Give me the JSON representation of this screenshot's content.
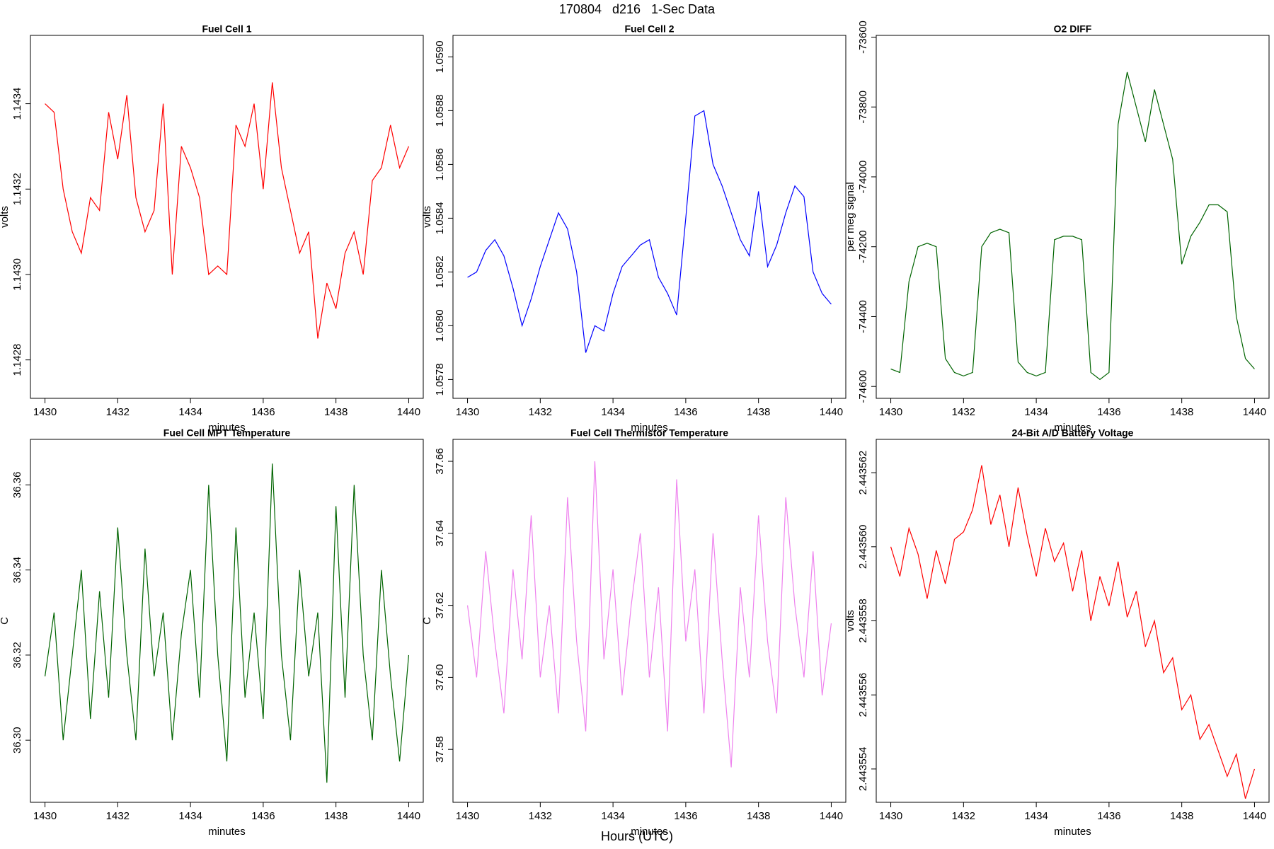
{
  "title": "170804   d216   1-Sec Data",
  "xlabel": "Hours (UTC)",
  "chart_data": [
    {
      "type": "line",
      "title": "Fuel Cell 1",
      "xlabel": "minutes",
      "ylabel": "volts",
      "color": "#ff0000",
      "x": [
        1430,
        1430.25,
        1430.5,
        1430.75,
        1431,
        1431.25,
        1431.5,
        1431.75,
        1432,
        1432.25,
        1432.5,
        1432.75,
        1433,
        1433.25,
        1433.5,
        1433.75,
        1434,
        1434.25,
        1434.5,
        1434.75,
        1435,
        1435.25,
        1435.5,
        1435.75,
        1436,
        1436.25,
        1436.5,
        1436.75,
        1437,
        1437.25,
        1437.5,
        1437.75,
        1438,
        1438.25,
        1438.5,
        1438.75,
        1439,
        1439.25,
        1439.5,
        1439.75,
        1440
      ],
      "values": [
        1.1434,
        1.14338,
        1.1432,
        1.1431,
        1.14305,
        1.14318,
        1.14315,
        1.14338,
        1.14327,
        1.14342,
        1.14318,
        1.1431,
        1.14315,
        1.1434,
        1.143,
        1.1433,
        1.14325,
        1.14318,
        1.143,
        1.14302,
        1.143,
        1.14335,
        1.1433,
        1.1434,
        1.1432,
        1.14345,
        1.14325,
        1.14315,
        1.14305,
        1.1431,
        1.14285,
        1.14298,
        1.14292,
        1.14305,
        1.1431,
        1.143,
        1.14322,
        1.14325,
        1.14335,
        1.14325,
        1.1433
      ],
      "xlim": [
        1429.6,
        1440.4
      ],
      "xticks": [
        1430,
        1432,
        1434,
        1436,
        1438,
        1440
      ],
      "ylim": [
        1.14271,
        1.14356
      ],
      "yticks": [
        1.1428,
        {
          "value": 1.143,
          "label": "1.1430"
        },
        1.1432,
        1.1434
      ]
    },
    {
      "type": "line",
      "title": "Fuel Cell 2",
      "xlabel": "minutes",
      "ylabel": "volts",
      "color": "#0000ff",
      "x": [
        1430,
        1430.25,
        1430.5,
        1430.75,
        1431,
        1431.25,
        1431.5,
        1431.75,
        1432,
        1432.25,
        1432.5,
        1432.75,
        1433,
        1433.25,
        1433.5,
        1433.75,
        1434,
        1434.25,
        1434.5,
        1434.75,
        1435,
        1435.25,
        1435.5,
        1435.75,
        1436,
        1436.25,
        1436.5,
        1436.75,
        1437,
        1437.25,
        1437.5,
        1437.75,
        1438,
        1438.25,
        1438.5,
        1438.75,
        1439,
        1439.25,
        1439.5,
        1439.75,
        1440
      ],
      "values": [
        1.05818,
        1.0582,
        1.05828,
        1.05832,
        1.05826,
        1.05814,
        1.058,
        1.0581,
        1.05822,
        1.05832,
        1.05842,
        1.05836,
        1.0582,
        1.0579,
        1.058,
        1.05798,
        1.05812,
        1.05822,
        1.05826,
        1.0583,
        1.05832,
        1.05818,
        1.05812,
        1.05804,
        1.0584,
        1.05878,
        1.0588,
        1.0586,
        1.05852,
        1.05842,
        1.05832,
        1.05826,
        1.0585,
        1.05822,
        1.0583,
        1.05842,
        1.05852,
        1.05848,
        1.0582,
        1.05812,
        1.05808
      ],
      "xlim": [
        1429.6,
        1440.4
      ],
      "xticks": [
        1430,
        1432,
        1434,
        1436,
        1438,
        1440
      ],
      "ylim": [
        1.05773,
        1.05908
      ],
      "yticks": [
        1.0578,
        {
          "value": 1.058,
          "label": "1.0580"
        },
        1.0582,
        1.0584,
        1.0586,
        1.0588,
        {
          "value": 1.059,
          "label": "1.0590"
        }
      ]
    },
    {
      "type": "line",
      "title": "O2 DIFF",
      "xlabel": "minutes",
      "ylabel": "per meg signal",
      "color": "#006400",
      "x": [
        1430,
        1430.25,
        1430.5,
        1430.75,
        1431,
        1431.25,
        1431.5,
        1431.75,
        1432,
        1432.25,
        1432.5,
        1432.75,
        1433,
        1433.25,
        1433.5,
        1433.75,
        1434,
        1434.25,
        1434.5,
        1434.75,
        1435,
        1435.25,
        1435.5,
        1435.75,
        1436,
        1436.25,
        1436.5,
        1436.75,
        1437,
        1437.25,
        1437.5,
        1437.75,
        1438,
        1438.25,
        1438.5,
        1438.75,
        1439,
        1439.25,
        1439.5,
        1439.75,
        1440
      ],
      "values": [
        -74550,
        -74560,
        -74300,
        -74200,
        -74190,
        -74200,
        -74520,
        -74560,
        -74570,
        -74560,
        -74200,
        -74160,
        -74150,
        -74160,
        -74530,
        -74560,
        -74570,
        -74560,
        -74180,
        -74170,
        -74170,
        -74180,
        -74560,
        -74580,
        -74560,
        -73850,
        -73700,
        -73800,
        -73900,
        -73750,
        -73850,
        -73950,
        -74250,
        -74170,
        -74130,
        -74080,
        -74080,
        -74100,
        -74400,
        -74520,
        -74550
      ],
      "xlim": [
        1429.6,
        1440.4
      ],
      "xticks": [
        1430,
        1432,
        1434,
        1436,
        1438,
        1440
      ],
      "ylim": [
        -74634,
        -73595
      ],
      "yticks": [
        -74600,
        -74400,
        -74200,
        -74000,
        -73800,
        -73600
      ]
    },
    {
      "type": "line",
      "title": "Fuel Cell MPT Temperature",
      "xlabel": "minutes",
      "ylabel": "C",
      "color": "#006400",
      "x": [
        1430,
        1430.25,
        1430.5,
        1430.75,
        1431,
        1431.25,
        1431.5,
        1431.75,
        1432,
        1432.25,
        1432.5,
        1432.75,
        1433,
        1433.25,
        1433.5,
        1433.75,
        1434,
        1434.25,
        1434.5,
        1434.75,
        1435,
        1435.25,
        1435.5,
        1435.75,
        1436,
        1436.25,
        1436.5,
        1436.75,
        1437,
        1437.25,
        1437.5,
        1437.75,
        1438,
        1438.25,
        1438.5,
        1438.75,
        1439,
        1439.25,
        1439.5,
        1439.75,
        1440
      ],
      "values": [
        36.315,
        36.33,
        36.3,
        36.32,
        36.34,
        36.305,
        36.335,
        36.31,
        36.35,
        36.32,
        36.3,
        36.345,
        36.315,
        36.33,
        36.3,
        36.325,
        36.34,
        36.31,
        36.36,
        36.32,
        36.295,
        36.35,
        36.31,
        36.33,
        36.305,
        36.365,
        36.32,
        36.3,
        36.34,
        36.315,
        36.33,
        36.29,
        36.355,
        36.31,
        36.36,
        36.32,
        36.3,
        36.34,
        36.315,
        36.295,
        36.32
      ],
      "xlim": [
        1429.6,
        1440.4
      ],
      "xticks": [
        1430,
        1432,
        1434,
        1436,
        1438,
        1440
      ],
      "ylim": [
        36.2854,
        36.3707
      ],
      "yticks": [
        {
          "value": 36.3,
          "label": "36.30"
        },
        36.32,
        36.34,
        36.36
      ]
    },
    {
      "type": "line",
      "title": "Fuel Cell Thermistor Temperature",
      "xlabel": "minutes",
      "ylabel": "C",
      "color": "#ee82ee",
      "x": [
        1430,
        1430.25,
        1430.5,
        1430.75,
        1431,
        1431.25,
        1431.5,
        1431.75,
        1432,
        1432.25,
        1432.5,
        1432.75,
        1433,
        1433.25,
        1433.5,
        1433.75,
        1434,
        1434.25,
        1434.5,
        1434.75,
        1435,
        1435.25,
        1435.5,
        1435.75,
        1436,
        1436.25,
        1436.5,
        1436.75,
        1437,
        1437.25,
        1437.5,
        1437.75,
        1438,
        1438.25,
        1438.5,
        1438.75,
        1439,
        1439.25,
        1439.5,
        1439.75,
        1440
      ],
      "values": [
        37.62,
        37.6,
        37.635,
        37.61,
        37.59,
        37.63,
        37.605,
        37.645,
        37.6,
        37.62,
        37.59,
        37.65,
        37.61,
        37.585,
        37.66,
        37.605,
        37.63,
        37.595,
        37.62,
        37.64,
        37.6,
        37.625,
        37.585,
        37.655,
        37.61,
        37.63,
        37.59,
        37.64,
        37.605,
        37.575,
        37.625,
        37.6,
        37.645,
        37.61,
        37.59,
        37.65,
        37.62,
        37.6,
        37.635,
        37.595,
        37.615
      ],
      "xlim": [
        1429.6,
        1440.4
      ],
      "xticks": [
        1430,
        1432,
        1434,
        1436,
        1438,
        1440
      ],
      "ylim": [
        37.5653,
        37.6661
      ],
      "yticks": [
        37.58,
        {
          "value": 37.6,
          "label": "37.60"
        },
        37.62,
        37.64,
        37.66
      ]
    },
    {
      "type": "line",
      "title": "24-Bit A/D Battery Voltage",
      "xlabel": "minutes",
      "ylabel": "volts",
      "color": "#ff0000",
      "x": [
        1430,
        1430.25,
        1430.5,
        1430.75,
        1431,
        1431.25,
        1431.5,
        1431.75,
        1432,
        1432.25,
        1432.5,
        1432.75,
        1433,
        1433.25,
        1433.5,
        1433.75,
        1434,
        1434.25,
        1434.5,
        1434.75,
        1435,
        1435.25,
        1435.5,
        1435.75,
        1436,
        1436.25,
        1436.5,
        1436.75,
        1437,
        1437.25,
        1437.5,
        1437.75,
        1438,
        1438.25,
        1438.5,
        1438.75,
        1439,
        1439.25,
        1439.5,
        1439.75,
        1440
      ],
      "values": [
        2.44356,
        2.4435592,
        2.4435605,
        2.4435598,
        2.4435586,
        2.4435599,
        2.443559,
        2.4435602,
        2.4435604,
        2.443561,
        2.4435622,
        2.4435606,
        2.4435614,
        2.44356,
        2.4435616,
        2.4435603,
        2.4435592,
        2.4435605,
        2.4435596,
        2.4435601,
        2.4435588,
        2.4435599,
        2.443558,
        2.4435592,
        2.4435584,
        2.4435596,
        2.4435581,
        2.4435588,
        2.4435573,
        2.443558,
        2.4435566,
        2.443557,
        2.4435556,
        2.443556,
        2.4435548,
        2.4435552,
        2.4435545,
        2.4435538,
        2.4435544,
        2.4435532,
        2.443554
      ],
      "xlim": [
        1429.6,
        1440.4
      ],
      "xticks": [
        1430,
        1432,
        1434,
        1436,
        1438,
        1440
      ],
      "ylim": [
        2.4435531,
        2.4435629
      ],
      "yticks": [
        2.443554,
        2.443556,
        2.443558,
        {
          "value": 2.44356,
          "label": "2.443560"
        },
        2.443562
      ]
    }
  ]
}
